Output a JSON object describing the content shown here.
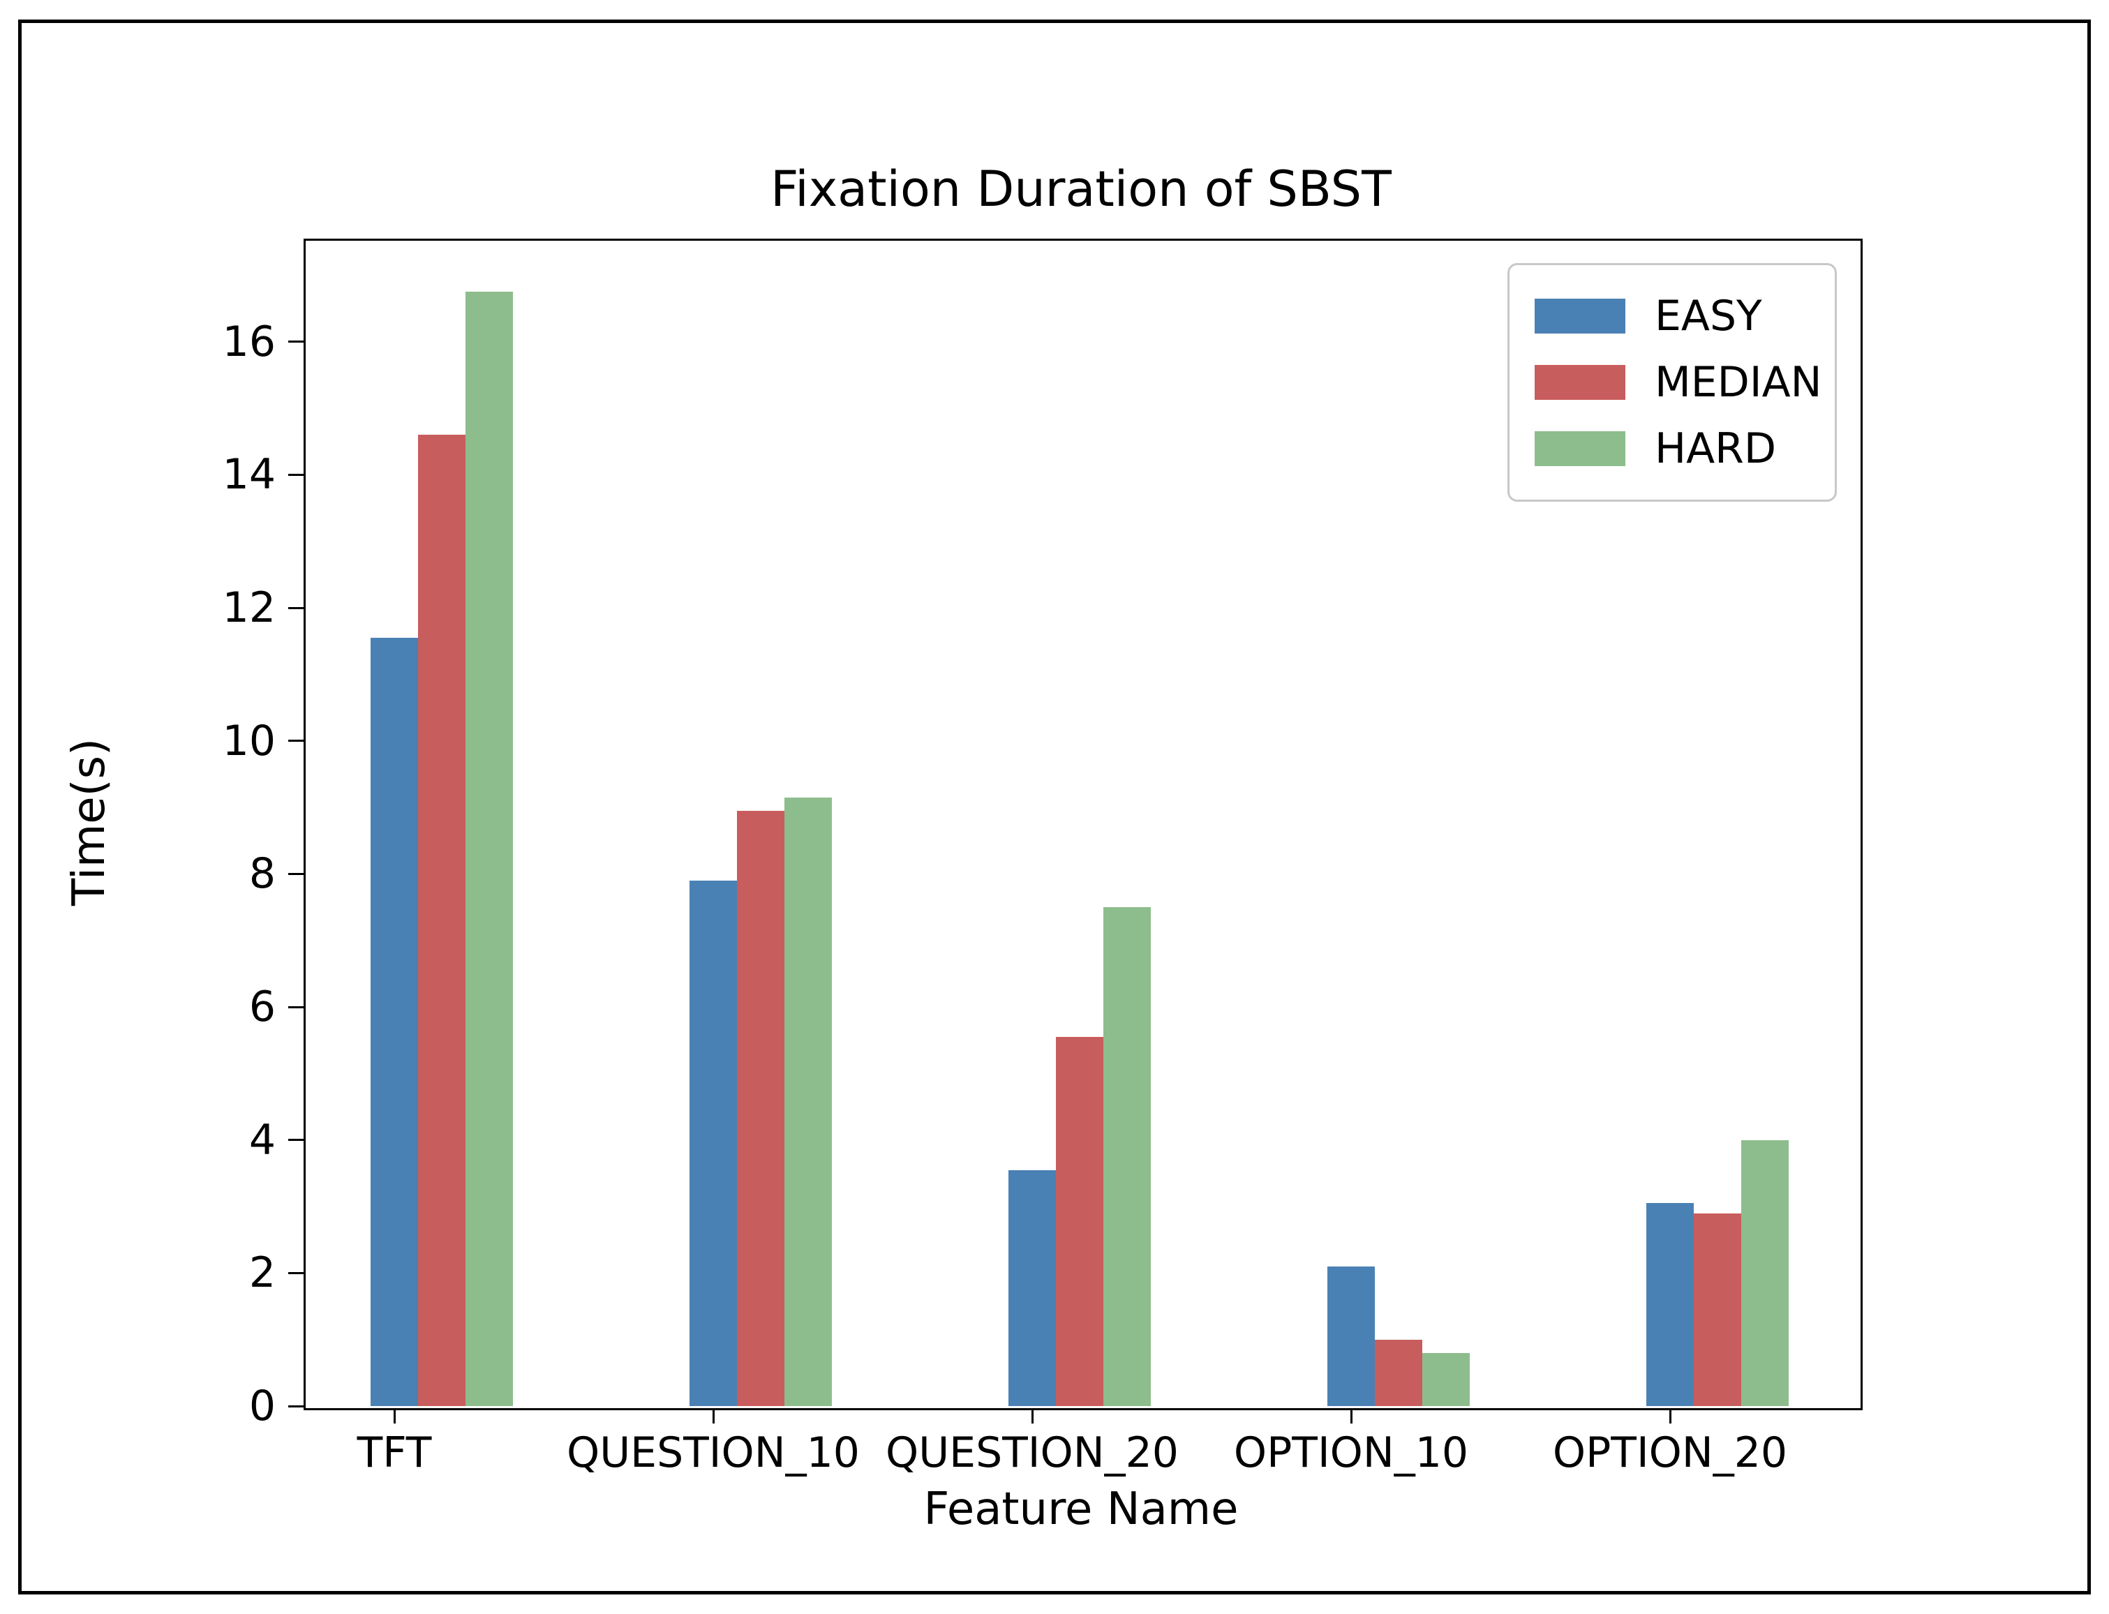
{
  "chart_data": {
    "type": "bar",
    "title": "Fixation Duration of SBST",
    "xlabel": "Feature Name",
    "ylabel": "Time(s)",
    "categories": [
      "TFT",
      "QUESTION_10",
      "QUESTION_20",
      "OPTION_10",
      "OPTION_20"
    ],
    "series": [
      {
        "name": "EASY",
        "color": "#4A81B4",
        "values": [
          11.55,
          7.9,
          3.55,
          2.1,
          3.05
        ]
      },
      {
        "name": "MEDIAN",
        "color": "#C85D5D",
        "values": [
          14.6,
          8.95,
          5.55,
          1.0,
          2.9
        ]
      },
      {
        "name": "HARD",
        "color": "#8DBD8D",
        "values": [
          16.75,
          9.15,
          7.5,
          0.8,
          4.0
        ]
      }
    ],
    "yticks": [
      0,
      2,
      4,
      6,
      8,
      10,
      12,
      14,
      16
    ],
    "ylim": [
      0,
      17.55
    ],
    "grid": false,
    "legend_position": "upper right",
    "background_color": "#ffffff",
    "text_color": "#000000"
  }
}
